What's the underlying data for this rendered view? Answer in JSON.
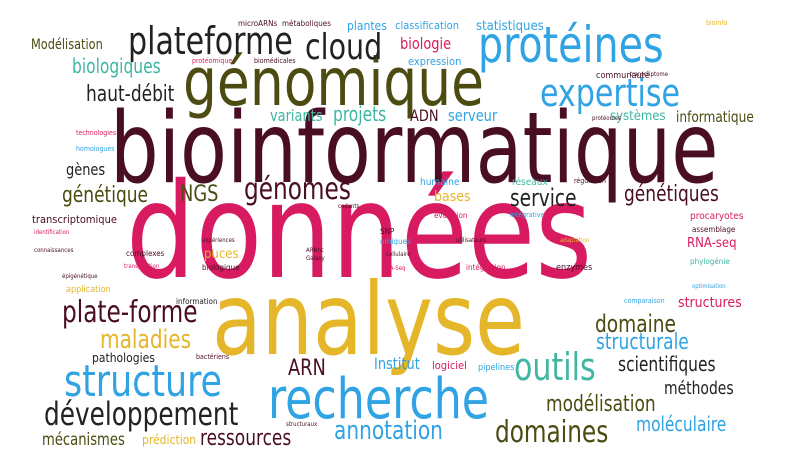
{
  "colors": {
    "magenta": "#d81b60",
    "maroon": "#4a0e24",
    "olive": "#4b4b12",
    "sky": "#2fa3e3",
    "gold": "#e6b62a",
    "teal": "#3fb6a2",
    "dark": "#222222"
  },
  "words": {
    "donnees": "données",
    "bioinformatique": "bioinformatique",
    "analyse": "analyse",
    "genomique": "génomique",
    "proteines": "protéines",
    "recherche": "recherche",
    "structure": "structure",
    "plateforme": "plateforme",
    "cloud": "cloud",
    "expertise": "expertise",
    "developpement": "développement",
    "outils": "outils",
    "genomes": "génomes",
    "plate_forme": "plate-forme",
    "domaines": "domaines",
    "maladies": "maladies",
    "annotation": "annotation",
    "domaine": "domaine",
    "scientifiques": "scientifiques",
    "structurale": "structurale",
    "modelisation_lower": "modélisation",
    "ressources": "ressources",
    "moleculaire": "moléculaire",
    "mecanismes": "mécanismes",
    "methodes": "méthodes",
    "projets": "projets",
    "genetiques": "génétiques",
    "genetique": "génétique",
    "service": "service",
    "haut_debit": "haut-débit",
    "biologiques": "biologiques",
    "Modelisation": "Modélisation",
    "NGS": "NGS",
    "ARN": "ARN",
    "Institut": "Institut",
    "genes": "gènes",
    "variants": "variants",
    "ADN": "ADN",
    "serveur": "serveur",
    "informatique": "informatique",
    "biologie": "biologie",
    "plantes": "plantes",
    "classification": "classification",
    "statistiques": "statistiques",
    "expression": "expression",
    "communaute": "communauté",
    "systemes": "systèmes",
    "structures": "structures",
    "RNA_seq": "RNA-seq",
    "bases": "bases",
    "puces": "puces",
    "prediction": "prédiction",
    "pathologies": "pathologies",
    "transcriptomique": "transcriptomique",
    "microARNs": "microARNs",
    "metaboliques": "métaboliques",
    "proteomique": "protéomique",
    "biomedicales": "biomédicales",
    "bioinfo": "bioinfo",
    "transcriptome": "transcriptome",
    "technologies": "technologies",
    "homologues": "homologues",
    "humaine": "humaine",
    "reseaux": "réseaux",
    "regulation": "régulation",
    "evolution": "évolution",
    "integrative": "intégrative",
    "procaryotes": "procaryotes",
    "assemblage": "assemblage",
    "SNP": "SNP",
    "omiques": "omiques",
    "complexes": "complexes",
    "identification": "identification",
    "connaissances": "connaissances",
    "integration": "intégration",
    "enzymes": "enzymes",
    "phylogenie": "phylogénie",
    "application": "application",
    "epigenetique": "épigénétique",
    "information": "information",
    "logiciel": "logiciel",
    "pipelines": "pipelines",
    "bacteriens": "bactériens",
    "structuraux": "structuraux",
    "comparaison": "comparaison",
    "optimisation": "optimisation",
    "biologique": "biologique",
    "cellulaire": "cellulaire",
    "utilisateurs": "utilisateurs",
    "adaptation": "adaptation",
    "ARNnc": "ARNnc",
    "Galaxy": "Galaxy",
    "RNA_Seq": "RNA-Seq",
    "experiences": "expériences",
    "transposition": "transposition",
    "proteomes": "protéomes",
    "codants": "codants"
  }
}
